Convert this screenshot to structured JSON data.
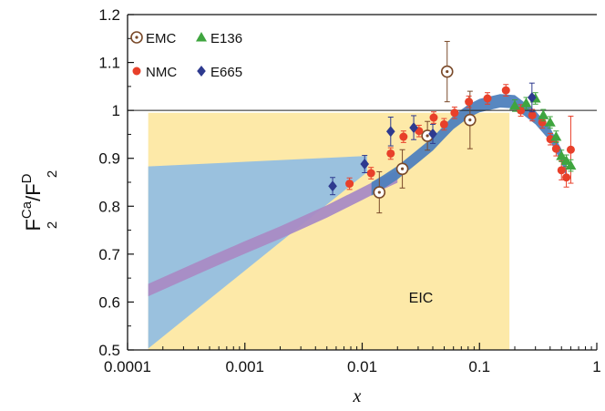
{
  "chart_data": {
    "type": "scatter",
    "title": "",
    "xlabel": "x",
    "ylabel": {
      "base": "F",
      "sub": "2",
      "sup_num": "Ca",
      "slash": "/",
      "sup_den": "D"
    },
    "x_scale": "log",
    "xlim": [
      0.0001,
      1
    ],
    "ylim": [
      0.5,
      1.2
    ],
    "x_ticks": [
      {
        "value": 0.0001,
        "label": "0.0001"
      },
      {
        "value": 0.001,
        "label": "0.001"
      },
      {
        "value": 0.01,
        "label": "0.01"
      },
      {
        "value": 0.1,
        "label": "0.1"
      },
      {
        "value": 1,
        "label": "1"
      }
    ],
    "y_ticks": [
      {
        "value": 0.5,
        "label": "0.5"
      },
      {
        "value": 0.6,
        "label": "0.6"
      },
      {
        "value": 0.7,
        "label": "0.7"
      },
      {
        "value": 0.8,
        "label": "0.8"
      },
      {
        "value": 0.9,
        "label": "0.9"
      },
      {
        "value": 1.0,
        "label": "1"
      },
      {
        "value": 1.1,
        "label": "1.1"
      },
      {
        "value": 1.2,
        "label": "1.2"
      }
    ],
    "reference_line": 1.0,
    "eic_region": {
      "label": "EIC",
      "x_range": [
        0.00015,
        0.18
      ],
      "y_top": 0.995,
      "color": "#fde9a8"
    },
    "uncertainty_band": {
      "color": "#8fbde3",
      "upper": [
        [
          0.00015,
          0.883
        ],
        [
          0.011,
          0.905
        ]
      ],
      "lower": [
        [
          0.00015,
          0.503
        ],
        [
          0.011,
          0.871
        ]
      ]
    },
    "model_bands": [
      {
        "name": "low-x band",
        "color": "#a98bc4",
        "points": [
          [
            0.00015,
            0.625
          ],
          [
            0.0005,
            0.682
          ],
          [
            0.001,
            0.714
          ],
          [
            0.002,
            0.745
          ],
          [
            0.005,
            0.789
          ],
          [
            0.01,
            0.826
          ],
          [
            0.015,
            0.848
          ],
          [
            0.02,
            0.862
          ]
        ],
        "half_width": 0.013
      },
      {
        "name": "fit band",
        "color": "#4f81bd",
        "points": [
          [
            0.012,
            0.836
          ],
          [
            0.015,
            0.85
          ],
          [
            0.02,
            0.87
          ],
          [
            0.03,
            0.905
          ],
          [
            0.04,
            0.93
          ],
          [
            0.05,
            0.955
          ],
          [
            0.06,
            0.975
          ],
          [
            0.08,
            0.998
          ],
          [
            0.1,
            1.01
          ],
          [
            0.15,
            1.02
          ],
          [
            0.2,
            1.018
          ],
          [
            0.25,
            1.0
          ],
          [
            0.3,
            0.985
          ],
          [
            0.4,
            0.95
          ],
          [
            0.5,
            0.905
          ],
          [
            0.55,
            0.875
          ]
        ],
        "half_width": 0.014
      }
    ],
    "legend": [
      {
        "name": "EMC",
        "marker": "circle-dot",
        "color": "#7a4a2a"
      },
      {
        "name": "E136",
        "marker": "triangle",
        "color": "#3fa53f"
      },
      {
        "name": "NMC",
        "marker": "filled-circle",
        "color": "#e8402a"
      },
      {
        "name": "E665",
        "marker": "diamond",
        "color": "#2e3a8f"
      }
    ],
    "series": [
      {
        "name": "EMC",
        "marker": "circle-dot",
        "color": "#7a4a2a",
        "points": [
          [
            0.014,
            0.829,
            0.043
          ],
          [
            0.022,
            0.878,
            0.04
          ],
          [
            0.036,
            0.947,
            0.03
          ],
          [
            0.053,
            1.081,
            0.063
          ],
          [
            0.083,
            0.98,
            0.06
          ]
        ]
      },
      {
        "name": "NMC",
        "marker": "filled-circle",
        "color": "#e8402a",
        "points": [
          [
            0.0078,
            0.847,
            0.012
          ],
          [
            0.0119,
            0.869,
            0.012
          ],
          [
            0.0175,
            0.91,
            0.012
          ],
          [
            0.0225,
            0.945,
            0.012
          ],
          [
            0.0305,
            0.957,
            0.012
          ],
          [
            0.0407,
            0.985,
            0.012
          ],
          [
            0.0499,
            0.971,
            0.012
          ],
          [
            0.0613,
            0.995,
            0.012
          ],
          [
            0.0812,
            1.018,
            0.012
          ],
          [
            0.117,
            1.025,
            0.012
          ],
          [
            0.168,
            1.042,
            0.012
          ],
          [
            0.225,
            1.0,
            0.012
          ],
          [
            0.282,
            0.99,
            0.012
          ],
          [
            0.343,
            0.975,
            0.012
          ],
          [
            0.402,
            0.94,
            0.012
          ],
          [
            0.45,
            0.92,
            0.015
          ],
          [
            0.5,
            0.875,
            0.02
          ],
          [
            0.55,
            0.86,
            0.02
          ],
          [
            0.6,
            0.918,
            0.07
          ]
        ]
      },
      {
        "name": "E136",
        "marker": "triangle",
        "color": "#3fa53f",
        "points": [
          [
            0.2,
            1.01,
            0.012
          ],
          [
            0.25,
            1.015,
            0.012
          ],
          [
            0.3,
            1.025,
            0.012
          ],
          [
            0.35,
            0.99,
            0.012
          ],
          [
            0.4,
            0.975,
            0.012
          ],
          [
            0.45,
            0.945,
            0.012
          ],
          [
            0.5,
            0.905,
            0.012
          ],
          [
            0.55,
            0.895,
            0.012
          ],
          [
            0.6,
            0.885,
            0.012
          ]
        ]
      },
      {
        "name": "E665",
        "marker": "diamond",
        "color": "#2e3a8f",
        "points": [
          [
            0.0056,
            0.842,
            0.018
          ],
          [
            0.0105,
            0.888,
            0.018
          ],
          [
            0.0175,
            0.956,
            0.03
          ],
          [
            0.0275,
            0.964,
            0.025
          ],
          [
            0.04,
            0.951,
            0.02
          ],
          [
            0.28,
            1.027,
            0.03
          ]
        ]
      }
    ],
    "grid": false
  }
}
